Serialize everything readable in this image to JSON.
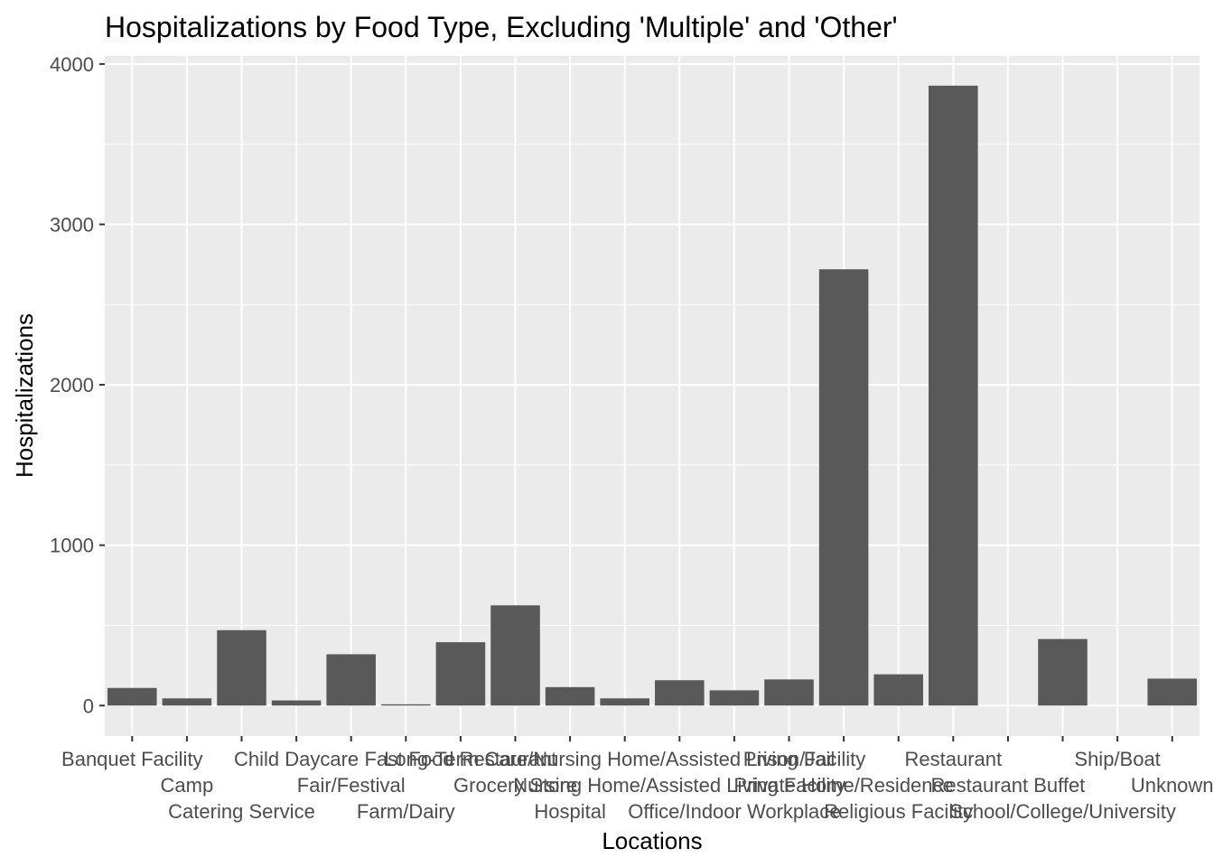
{
  "chart_data": {
    "type": "bar",
    "title": "Hospitalizations by Food Type, Excluding 'Multiple' and 'Other'",
    "xlabel": "Locations",
    "ylabel": "Hospitalizations",
    "ylim": [
      -190,
      4050
    ],
    "yticks": [
      0,
      1000,
      2000,
      3000,
      4000
    ],
    "grid": true,
    "legend": "none",
    "bar_color": "#595959",
    "panel_color": "#ebebeb",
    "categories": [
      "Banquet Facility",
      "Camp",
      "Catering Service",
      "Child Daycare",
      "Fair/Festival",
      "Farm/Dairy",
      "Fast Food Restaurant",
      "Grocery Store",
      "Hospital",
      "Long-Term Care/Nursing Home/Assisted Living Facility",
      "Nursing Home/Assisted Living Facility",
      "Office/Indoor Workplace",
      "Prison/Jail",
      "Private Home/Residence",
      "Religious Facility",
      "Restaurant",
      "Restaurant Buffet",
      "School/College/University",
      "Ship/Boat",
      "Unknown"
    ],
    "values": [
      110,
      45,
      470,
      32,
      320,
      8,
      395,
      625,
      115,
      45,
      158,
      95,
      163,
      2720,
      195,
      3865,
      0,
      415,
      0,
      168
    ]
  }
}
